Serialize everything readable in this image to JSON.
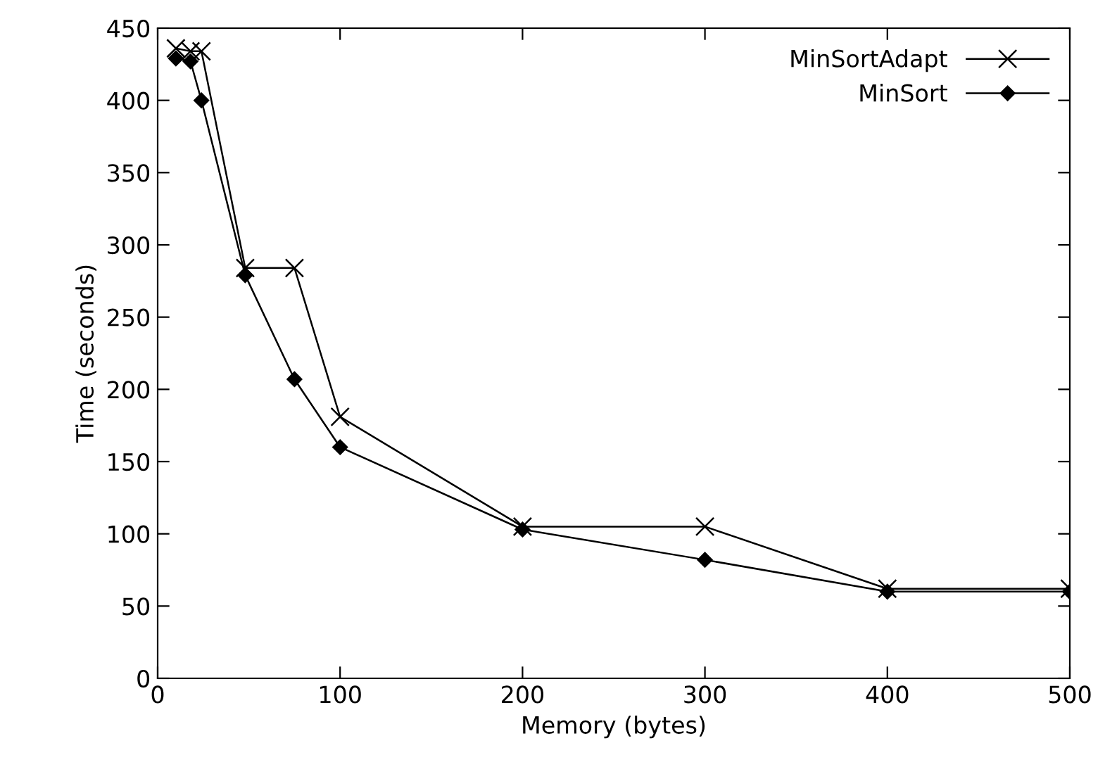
{
  "chart_data": {
    "type": "line",
    "xlabel": "Memory (bytes)",
    "ylabel": "Time (seconds)",
    "x": [
      10,
      18,
      24,
      48,
      75,
      100,
      200,
      300,
      400,
      500
    ],
    "series": [
      {
        "name": "MinSortAdapt",
        "color": "#000000",
        "marker": "cross",
        "values": [
          436,
          434,
          434,
          284,
          284,
          181,
          105,
          105,
          62,
          62
        ]
      },
      {
        "name": "MinSort",
        "color": "#000000",
        "marker": "diamond",
        "values": [
          429,
          427,
          400,
          279,
          207,
          160,
          103,
          82,
          60,
          60
        ]
      }
    ],
    "xlim": [
      0,
      500
    ],
    "xticks": [
      0,
      100,
      200,
      300,
      400,
      500
    ],
    "ylim": [
      0,
      450
    ],
    "yticks": [
      0,
      50,
      100,
      150,
      200,
      250,
      300,
      350,
      400,
      450
    ],
    "grid": false,
    "legend": "top right",
    "line_style": "solid"
  }
}
